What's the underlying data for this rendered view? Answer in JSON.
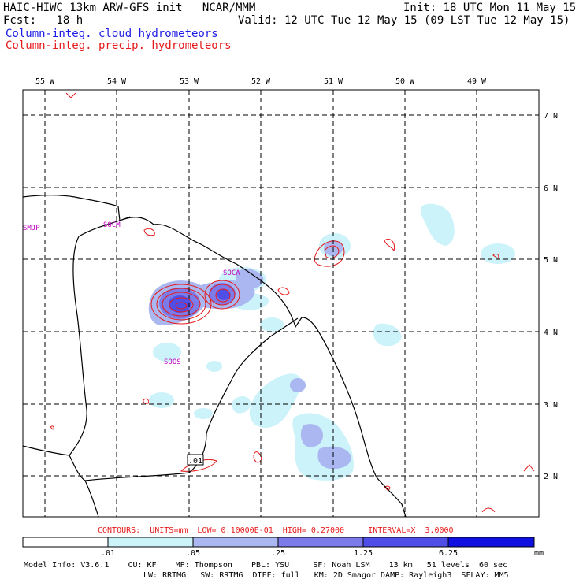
{
  "header": {
    "title": "HAIC-HIWC 13km ARW-GFS init   NCAR/MMM",
    "init": "Init: 18 UTC Mon 11 May 15",
    "fcst": "Fcst:   18 h",
    "valid": "Valid: 12 UTC Tue 12 May 15 (09 LST Tue 12 May 15)",
    "legend_cloud": "Column-integ. cloud hydrometeors",
    "legend_precip": "Column-integ. precip. hydrometeors"
  },
  "axes": {
    "lon_labels": [
      "55 W",
      "54 W",
      "53 W",
      "52 W",
      "51 W",
      "50 W",
      "49 W"
    ],
    "lat_labels": [
      "7 N",
      "6 N",
      "5 N",
      "4 N",
      "3 N",
      "2 N"
    ]
  },
  "stations": [
    "SMJP",
    "SOCM",
    "SOCA",
    "SOOS"
  ],
  "contour_label": ".01",
  "contours_info": "CONTOURS:  UNITS=mm  LOW= 0.10000E-01  HIGH= 0.27000     INTERVAL=X  3.0000",
  "colorbar": {
    "ticks": [
      ".01",
      ".05",
      ".25",
      "1.25",
      "6.25"
    ],
    "units": "mm",
    "colors": [
      "#ffffff",
      "#ccf2fa",
      "#aab7f0",
      "#7b7bea",
      "#4f4fe8",
      "#1010e0"
    ]
  },
  "model_info": {
    "line1": "Model Info: V3.6.1    CU: KF    MP: Thompson    PBL: YSU     SF: Noah LSM    13 km   51 levels  60 sec",
    "line2": "LW: RRTMG   SW: RRTMG  DIFF: full   KM: 2D Smagor DAMP: Rayleigh3  SFLAY: MM5"
  }
}
